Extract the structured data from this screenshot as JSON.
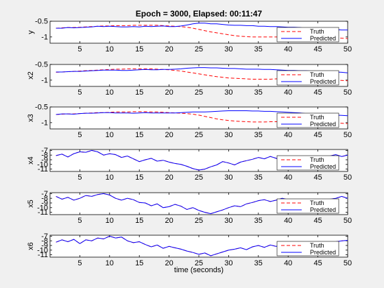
{
  "title": "Epoch = 3000, Elapsed: 00:11:47",
  "xlabel": "time (seconds)",
  "x_ticks": [
    "5",
    "10",
    "15",
    "20",
    "25",
    "30",
    "35",
    "40",
    "45",
    "50"
  ],
  "colors": {
    "truth": "#ff0000",
    "predicted": "#0000ff",
    "axes": "#000000",
    "plot_bg": "#ffffff",
    "figure_bg": "#f0f0f0"
  },
  "legend_labels": {
    "truth": "Truth",
    "predicted": "Predicted"
  },
  "legend_location": "bottom-right",
  "chart_data": [
    {
      "type": "line",
      "ylabel": "y",
      "xlim": [
        0,
        50
      ],
      "ylim": [
        -1.2,
        -0.5
      ],
      "y_ticks": [
        "-0.5",
        "-1"
      ],
      "x": [
        1,
        2,
        3,
        4,
        5,
        6,
        7,
        8,
        9,
        10,
        11,
        12,
        13,
        14,
        15,
        16,
        17,
        18,
        19,
        20,
        21,
        22,
        23,
        24,
        25,
        26,
        27,
        28,
        29,
        30,
        31,
        32,
        33,
        34,
        35,
        36,
        37,
        38,
        39,
        40,
        41,
        42,
        43,
        44,
        45,
        46,
        47,
        48,
        49,
        50
      ],
      "series": [
        {
          "name": "Truth",
          "style": "dashed",
          "values": [
            -0.72,
            -0.71,
            -0.7,
            -0.7,
            -0.69,
            -0.68,
            -0.67,
            -0.66,
            -0.65,
            -0.65,
            -0.64,
            -0.64,
            -0.64,
            -0.63,
            -0.63,
            -0.63,
            -0.63,
            -0.63,
            -0.64,
            -0.65,
            -0.66,
            -0.67,
            -0.69,
            -0.72,
            -0.76,
            -0.8,
            -0.84,
            -0.87,
            -0.9,
            -0.93,
            -0.96,
            -0.98,
            -0.99,
            -1.0,
            -1.0,
            -1.0,
            -1.0,
            -1.0,
            -1.0,
            -1.0,
            -1.0,
            -1.0,
            -1.0,
            -1.0,
            -1.0,
            -1.01,
            -1.02,
            -1.03,
            -1.04,
            -1.05
          ]
        },
        {
          "name": "Predicted",
          "style": "solid",
          "values": [
            -0.72,
            -0.72,
            -0.7,
            -0.71,
            -0.7,
            -0.69,
            -0.68,
            -0.66,
            -0.67,
            -0.66,
            -0.67,
            -0.68,
            -0.68,
            -0.67,
            -0.68,
            -0.66,
            -0.67,
            -0.66,
            -0.65,
            -0.67,
            -0.67,
            -0.65,
            -0.62,
            -0.58,
            -0.56,
            -0.56,
            -0.58,
            -0.58,
            -0.6,
            -0.62,
            -0.63,
            -0.63,
            -0.64,
            -0.64,
            -0.66,
            -0.66,
            -0.67,
            -0.67,
            -0.68,
            -0.69,
            -0.69,
            -0.7,
            -0.72,
            -0.73,
            -0.75,
            -0.76,
            -0.77,
            -0.77,
            -0.78,
            -0.78
          ]
        }
      ]
    },
    {
      "type": "line",
      "ylabel": "x2",
      "xlim": [
        0,
        50
      ],
      "ylim": [
        -1.2,
        -0.5
      ],
      "y_ticks": [
        "-0.5",
        "-1"
      ],
      "x": [
        1,
        2,
        3,
        4,
        5,
        6,
        7,
        8,
        9,
        10,
        11,
        12,
        13,
        14,
        15,
        16,
        17,
        18,
        19,
        20,
        21,
        22,
        23,
        24,
        25,
        26,
        27,
        28,
        29,
        30,
        31,
        32,
        33,
        34,
        35,
        36,
        37,
        38,
        39,
        40,
        41,
        42,
        43,
        44,
        45,
        46,
        47,
        48,
        49,
        50
      ],
      "series": [
        {
          "name": "Truth",
          "style": "dashed",
          "values": [
            -0.75,
            -0.74,
            -0.73,
            -0.72,
            -0.71,
            -0.7,
            -0.69,
            -0.68,
            -0.67,
            -0.66,
            -0.65,
            -0.65,
            -0.64,
            -0.64,
            -0.64,
            -0.64,
            -0.64,
            -0.65,
            -0.66,
            -0.67,
            -0.69,
            -0.71,
            -0.74,
            -0.77,
            -0.8,
            -0.83,
            -0.86,
            -0.89,
            -0.91,
            -0.93,
            -0.94,
            -0.95,
            -0.96,
            -0.97,
            -0.97,
            -0.97,
            -0.97,
            -0.96,
            -0.95,
            -0.95,
            -0.94,
            -0.93,
            -0.93,
            -0.93,
            -0.94,
            -0.96,
            -0.98,
            -1.0,
            -1.01,
            -1.02
          ]
        },
        {
          "name": "Predicted",
          "style": "solid",
          "values": [
            -0.74,
            -0.74,
            -0.73,
            -0.72,
            -0.72,
            -0.71,
            -0.7,
            -0.69,
            -0.68,
            -0.68,
            -0.68,
            -0.69,
            -0.69,
            -0.68,
            -0.67,
            -0.66,
            -0.67,
            -0.67,
            -0.66,
            -0.66,
            -0.65,
            -0.64,
            -0.62,
            -0.61,
            -0.6,
            -0.6,
            -0.61,
            -0.61,
            -0.62,
            -0.63,
            -0.63,
            -0.64,
            -0.65,
            -0.65,
            -0.65,
            -0.66,
            -0.66,
            -0.67,
            -0.68,
            -0.69,
            -0.69,
            -0.7,
            -0.7,
            -0.71,
            -0.72,
            -0.73,
            -0.73,
            -0.74,
            -0.75,
            -0.77
          ]
        }
      ]
    },
    {
      "type": "line",
      "ylabel": "x3",
      "xlim": [
        0,
        50
      ],
      "ylim": [
        -1.2,
        -0.5
      ],
      "y_ticks": [
        "-0.5",
        "-1"
      ],
      "x": [
        1,
        2,
        3,
        4,
        5,
        6,
        7,
        8,
        9,
        10,
        11,
        12,
        13,
        14,
        15,
        16,
        17,
        18,
        19,
        20,
        21,
        22,
        23,
        24,
        25,
        26,
        27,
        28,
        29,
        30,
        31,
        32,
        33,
        34,
        35,
        36,
        37,
        38,
        39,
        40,
        41,
        42,
        43,
        44,
        45,
        46,
        47,
        48,
        49,
        50
      ],
      "series": [
        {
          "name": "Truth",
          "style": "dashed",
          "values": [
            -0.74,
            -0.73,
            -0.72,
            -0.72,
            -0.71,
            -0.7,
            -0.69,
            -0.68,
            -0.68,
            -0.67,
            -0.66,
            -0.66,
            -0.66,
            -0.65,
            -0.65,
            -0.65,
            -0.66,
            -0.66,
            -0.67,
            -0.68,
            -0.69,
            -0.7,
            -0.71,
            -0.73,
            -0.76,
            -0.8,
            -0.84,
            -0.88,
            -0.91,
            -0.93,
            -0.95,
            -0.96,
            -0.97,
            -0.98,
            -0.98,
            -0.98,
            -0.97,
            -0.97,
            -0.97,
            -0.97,
            -0.97,
            -0.97,
            -0.97,
            -0.98,
            -0.99,
            -1.0,
            -1.01,
            -1.02,
            -1.02,
            -1.03
          ]
        },
        {
          "name": "Predicted",
          "style": "solid",
          "values": [
            -0.74,
            -0.72,
            -0.72,
            -0.73,
            -0.71,
            -0.7,
            -0.7,
            -0.69,
            -0.68,
            -0.68,
            -0.69,
            -0.69,
            -0.69,
            -0.7,
            -0.69,
            -0.68,
            -0.69,
            -0.69,
            -0.69,
            -0.69,
            -0.69,
            -0.68,
            -0.67,
            -0.66,
            -0.66,
            -0.66,
            -0.65,
            -0.64,
            -0.63,
            -0.62,
            -0.62,
            -0.62,
            -0.62,
            -0.63,
            -0.63,
            -0.64,
            -0.64,
            -0.65,
            -0.66,
            -0.67,
            -0.68,
            -0.69,
            -0.71,
            -0.72,
            -0.73,
            -0.74,
            -0.75,
            -0.76,
            -0.77,
            -0.78
          ]
        }
      ]
    },
    {
      "type": "line",
      "ylabel": "x4",
      "xlim": [
        0,
        50
      ],
      "ylim": [
        -11.5,
        -6.8
      ],
      "y_ticks": [
        "-7",
        "-8",
        "-9",
        "-10",
        "-11"
      ],
      "x": [
        1,
        2,
        3,
        4,
        5,
        6,
        7,
        8,
        9,
        10,
        11,
        12,
        13,
        14,
        15,
        16,
        17,
        18,
        19,
        20,
        21,
        22,
        23,
        24,
        25,
        26,
        27,
        28,
        29,
        30,
        31,
        32,
        33,
        34,
        35,
        36,
        37,
        38,
        39,
        40,
        41,
        42,
        43,
        44,
        45,
        46,
        47,
        48,
        49,
        50
      ],
      "series": [
        {
          "name": "Truth",
          "style": "dashed",
          "values": [
            -8.1,
            -7.8,
            -8.4,
            -7.7,
            -7.3,
            -7.4,
            -7.0,
            -7.3,
            -8.0,
            -7.7,
            -7.9,
            -8.5,
            -8.2,
            -8.8,
            -9.4,
            -9.0,
            -8.7,
            -9.3,
            -9.1,
            -9.5,
            -9.8,
            -10.0,
            -10.4,
            -10.9,
            -11.2,
            -11.0,
            -10.5,
            -10.1,
            -9.4,
            -9.7,
            -10.1,
            -9.5,
            -9.2,
            -8.9,
            -8.5,
            -8.8,
            -8.3,
            -8.7,
            -9.2,
            -9.6,
            -9.0,
            -8.8,
            -9.3,
            -8.8,
            -8.4,
            -8.6,
            -8.2,
            -7.9,
            -8.3,
            -8.0
          ]
        },
        {
          "name": "Predicted",
          "style": "solid",
          "values": [
            -8.1,
            -7.8,
            -8.4,
            -7.7,
            -7.3,
            -7.4,
            -7.0,
            -7.3,
            -8.0,
            -7.7,
            -7.9,
            -8.5,
            -8.2,
            -8.8,
            -9.4,
            -9.0,
            -8.7,
            -9.3,
            -9.1,
            -9.5,
            -9.8,
            -10.0,
            -10.4,
            -10.9,
            -11.2,
            -11.0,
            -10.5,
            -10.1,
            -9.4,
            -9.7,
            -10.1,
            -9.5,
            -9.2,
            -8.9,
            -8.5,
            -8.8,
            -8.3,
            -8.7,
            -9.2,
            -9.6,
            -9.0,
            -8.8,
            -9.3,
            -8.8,
            -8.4,
            -8.6,
            -8.2,
            -7.9,
            -8.3,
            -8.0
          ]
        }
      ]
    },
    {
      "type": "line",
      "ylabel": "x5",
      "xlim": [
        0,
        50
      ],
      "ylim": [
        -11.5,
        -6.8
      ],
      "y_ticks": [
        "-7",
        "-8",
        "-9",
        "-10",
        "-11"
      ],
      "x": [
        1,
        2,
        3,
        4,
        5,
        6,
        7,
        8,
        9,
        10,
        11,
        12,
        13,
        14,
        15,
        16,
        17,
        18,
        19,
        20,
        21,
        22,
        23,
        24,
        25,
        26,
        27,
        28,
        29,
        30,
        31,
        32,
        33,
        34,
        35,
        36,
        37,
        38,
        39,
        40,
        41,
        42,
        43,
        44,
        45,
        46,
        47,
        48,
        49,
        50
      ],
      "series": [
        {
          "name": "Truth",
          "style": "dashed",
          "values": [
            -7.6,
            -8.2,
            -7.8,
            -8.4,
            -8.0,
            -7.4,
            -7.6,
            -7.2,
            -7.0,
            -7.3,
            -8.0,
            -8.4,
            -8.0,
            -8.3,
            -8.9,
            -9.0,
            -9.6,
            -9.2,
            -10.0,
            -9.8,
            -9.3,
            -9.7,
            -10.4,
            -10.0,
            -10.6,
            -11.0,
            -11.3,
            -10.9,
            -10.5,
            -10.0,
            -9.6,
            -9.8,
            -9.2,
            -8.9,
            -8.5,
            -8.3,
            -8.7,
            -8.4,
            -8.0,
            -8.3,
            -8.8,
            -9.1,
            -8.6,
            -8.7,
            -8.3,
            -8.4,
            -8.2,
            -8.0,
            -7.6,
            -8.0
          ]
        },
        {
          "name": "Predicted",
          "style": "solid",
          "values": [
            -7.6,
            -8.2,
            -7.8,
            -8.4,
            -8.0,
            -7.4,
            -7.6,
            -7.2,
            -7.0,
            -7.3,
            -8.0,
            -8.4,
            -8.0,
            -8.3,
            -8.9,
            -9.0,
            -9.6,
            -9.2,
            -10.0,
            -9.8,
            -9.3,
            -9.7,
            -10.4,
            -10.0,
            -10.6,
            -11.0,
            -11.3,
            -10.9,
            -10.5,
            -10.0,
            -9.6,
            -9.8,
            -9.2,
            -8.9,
            -8.5,
            -8.3,
            -8.7,
            -8.4,
            -8.0,
            -8.3,
            -8.8,
            -9.1,
            -8.6,
            -8.7,
            -8.3,
            -8.4,
            -8.2,
            -8.0,
            -7.6,
            -8.0
          ]
        }
      ]
    },
    {
      "type": "line",
      "ylabel": "x6",
      "xlim": [
        0,
        50
      ],
      "ylim": [
        -11.5,
        -6.8
      ],
      "y_ticks": [
        "-7",
        "-8",
        "-9",
        "-10",
        "-11"
      ],
      "x": [
        1,
        2,
        3,
        4,
        5,
        6,
        7,
        8,
        9,
        10,
        11,
        12,
        13,
        14,
        15,
        16,
        17,
        18,
        19,
        20,
        21,
        22,
        23,
        24,
        25,
        26,
        27,
        28,
        29,
        30,
        31,
        32,
        33,
        34,
        35,
        36,
        37,
        38,
        39,
        40,
        41,
        42,
        43,
        44,
        45,
        46,
        47,
        48,
        49,
        50
      ],
      "series": [
        {
          "name": "Truth",
          "style": "dashed",
          "values": [
            -8.3,
            -7.8,
            -8.2,
            -7.7,
            -8.6,
            -7.8,
            -8.0,
            -7.4,
            -7.6,
            -7.0,
            -7.4,
            -7.2,
            -8.0,
            -8.4,
            -8.2,
            -8.8,
            -9.3,
            -8.9,
            -9.6,
            -9.2,
            -9.5,
            -9.8,
            -10.2,
            -10.5,
            -10.9,
            -10.6,
            -11.2,
            -10.8,
            -10.4,
            -10.0,
            -9.8,
            -9.5,
            -9.9,
            -9.3,
            -9.0,
            -9.4,
            -8.9,
            -9.2,
            -8.7,
            -8.9,
            -9.1,
            -8.6,
            -9.0,
            -8.7,
            -8.5,
            -8.8,
            -8.5,
            -8.2,
            -8.0,
            -7.9
          ]
        },
        {
          "name": "Predicted",
          "style": "solid",
          "values": [
            -8.3,
            -7.8,
            -8.2,
            -7.7,
            -8.6,
            -7.8,
            -8.0,
            -7.4,
            -7.6,
            -7.0,
            -7.4,
            -7.2,
            -8.0,
            -8.4,
            -8.2,
            -8.8,
            -9.3,
            -8.9,
            -9.6,
            -9.2,
            -9.5,
            -9.8,
            -10.2,
            -10.5,
            -10.9,
            -10.6,
            -11.2,
            -10.8,
            -10.4,
            -10.0,
            -9.8,
            -9.5,
            -9.9,
            -9.3,
            -9.0,
            -9.4,
            -8.9,
            -9.2,
            -8.7,
            -8.9,
            -9.1,
            -8.6,
            -9.0,
            -8.7,
            -8.5,
            -8.8,
            -8.5,
            -8.2,
            -8.0,
            -7.9
          ]
        }
      ]
    }
  ]
}
